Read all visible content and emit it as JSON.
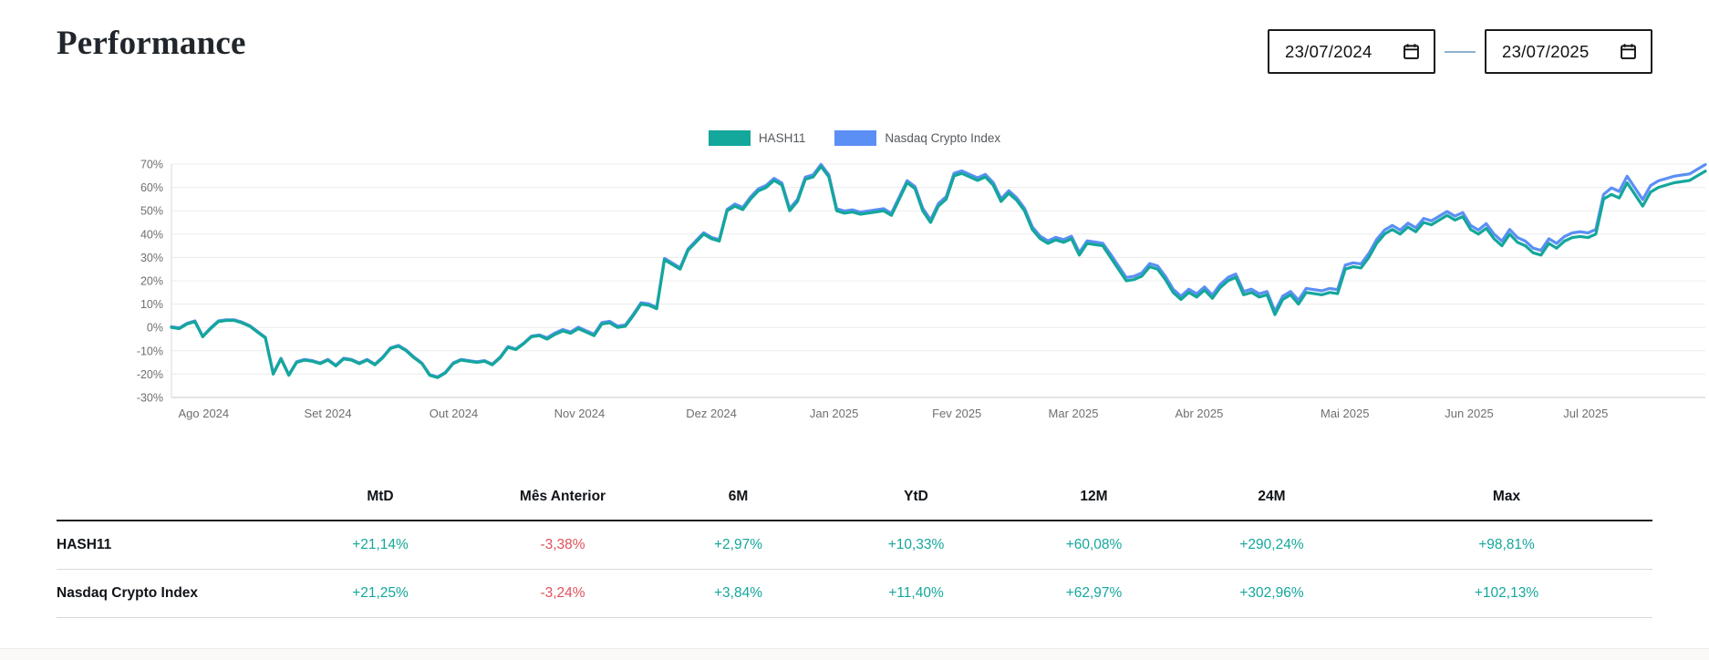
{
  "page": {
    "title": "Performance"
  },
  "date_range": {
    "start": "23/07/2024",
    "end": "23/07/2025"
  },
  "legend": [
    {
      "label": "HASH11",
      "color": "#14A79B"
    },
    {
      "label": "Nasdaq Crypto Index",
      "color": "#5B8FF5"
    }
  ],
  "chart_data": {
    "type": "line",
    "title": "",
    "xlabel": "",
    "ylabel": "",
    "ylim": [
      -30,
      70
    ],
    "grid": true,
    "legend_position": "top-center",
    "y_ticks": [
      70,
      60,
      50,
      40,
      30,
      20,
      10,
      0,
      -10,
      -20,
      -30
    ],
    "y_tick_suffix": "%",
    "x_tick_labels": [
      "Ago 2024",
      "Set 2024",
      "Out 2024",
      "Nov 2024",
      "Dez 2024",
      "Jan 2025",
      "Fev 2025",
      "Mar 2025",
      "Abr 2025",
      "Mai 2025",
      "Jun 2025",
      "Jul 2025"
    ],
    "month_fracs": [
      0.021,
      0.102,
      0.184,
      0.266,
      0.352,
      0.432,
      0.512,
      0.588,
      0.67,
      0.765,
      0.846,
      0.922
    ],
    "series": [
      {
        "name": "HASH11",
        "color": "#14A79B",
        "values": [
          0,
          -0.5,
          1.5,
          2.5,
          -4,
          -0.5,
          2.5,
          3,
          3,
          2,
          0.5,
          -2,
          -4.5,
          -20,
          -13.5,
          -20.5,
          -15,
          -14,
          -14.5,
          -15.5,
          -14,
          -16.5,
          -13.5,
          -14,
          -15.5,
          -14,
          -16,
          -13,
          -9,
          -8,
          -10,
          -13,
          -15.5,
          -20.5,
          -21.5,
          -19.5,
          -15.5,
          -14,
          -14.5,
          -15,
          -14.5,
          -16,
          -13,
          -8.5,
          -9.5,
          -7,
          -4,
          -3.5,
          -5,
          -3,
          -1.5,
          -2.5,
          -0.5,
          -2,
          -3.5,
          1.5,
          2,
          0,
          0.5,
          5,
          10,
          9.5,
          8,
          29,
          27,
          25,
          33,
          36.5,
          40,
          38,
          37,
          50,
          52,
          50.5,
          55,
          58.5,
          60,
          63,
          61,
          50,
          54,
          63.5,
          64.5,
          69,
          64.5,
          50,
          49,
          49.5,
          48.5,
          49,
          49.5,
          50,
          48,
          55,
          62,
          59.5,
          50,
          45,
          52,
          55,
          65,
          66,
          64.5,
          63,
          64.5,
          61,
          54,
          57.5,
          54.5,
          50,
          42,
          38,
          36,
          37.5,
          36.5,
          38,
          31,
          36,
          35.5,
          35,
          30,
          25,
          20,
          20.5,
          22,
          26,
          25,
          20.5,
          15,
          12,
          15,
          13,
          16,
          12.5,
          17,
          20,
          21.5,
          14,
          15,
          13,
          14,
          5.5,
          12,
          14,
          10,
          15,
          14.5,
          14,
          15,
          14.5,
          25,
          26,
          25.5,
          30,
          36,
          40,
          42,
          40,
          43,
          41,
          45,
          44,
          46,
          48,
          46,
          47.5,
          42,
          40,
          42.5,
          38,
          35,
          40,
          36.5,
          35,
          32,
          31,
          36,
          34,
          37,
          38.5,
          39,
          38.5,
          40,
          55,
          57,
          55.5,
          62,
          57,
          52,
          58,
          60,
          61,
          62,
          62.5,
          63,
          65,
          67
        ]
      },
      {
        "name": "Nasdaq Crypto Index",
        "color": "#5B8FF5",
        "values": [
          0.3,
          -0.2,
          1.8,
          2.8,
          -3.7,
          -0.2,
          2.8,
          3.3,
          3.3,
          2.3,
          0.8,
          -1.7,
          -4.2,
          -19.7,
          -13.2,
          -20.2,
          -14.7,
          -13.7,
          -14.2,
          -15.2,
          -13.7,
          -16.2,
          -13.2,
          -13.7,
          -15.2,
          -13.7,
          -15.7,
          -12.7,
          -8.7,
          -7.7,
          -9.7,
          -12.7,
          -15.2,
          -20.2,
          -21.2,
          -19.2,
          -15.2,
          -13.7,
          -14.2,
          -14.7,
          -14.2,
          -15.7,
          -12.7,
          -8.2,
          -9.2,
          -6.7,
          -3.7,
          -3.2,
          -4.4,
          -2.4,
          -0.9,
          -1.9,
          0.1,
          -1.4,
          -2.9,
          2.1,
          2.6,
          0.6,
          1.1,
          5.6,
          10.6,
          10.1,
          8.6,
          29.6,
          27.6,
          25.6,
          33.6,
          37.1,
          40.6,
          38.6,
          37.6,
          50.6,
          52.9,
          51.4,
          55.9,
          59.4,
          60.9,
          63.9,
          61.9,
          50.9,
          54.9,
          64.4,
          65.4,
          69.9,
          65.4,
          50.9,
          49.9,
          50.4,
          49.4,
          49.9,
          50.4,
          50.9,
          48.9,
          55.9,
          62.9,
          60.4,
          51.1,
          46.1,
          53.1,
          56.1,
          66.1,
          67.1,
          65.6,
          64.1,
          65.6,
          62.1,
          55.1,
          58.6,
          55.6,
          51.1,
          43.1,
          39.1,
          37.1,
          38.6,
          37.6,
          39.1,
          32.1,
          37.1,
          36.6,
          36.1,
          31.4,
          26.4,
          21.4,
          21.9,
          23.4,
          27.4,
          26.4,
          21.9,
          16.4,
          13.4,
          16.4,
          14.4,
          17.4,
          13.9,
          18.4,
          21.4,
          22.9,
          15.4,
          16.4,
          14.4,
          15.4,
          6.9,
          13.4,
          15.4,
          11.7,
          16.7,
          16.2,
          15.7,
          16.7,
          16.2,
          26.7,
          27.7,
          27.2,
          31.7,
          37.7,
          41.7,
          43.7,
          41.7,
          44.7,
          42.7,
          46.7,
          45.7,
          47.7,
          49.7,
          47.7,
          49.2,
          43.7,
          41.7,
          44.5,
          40,
          37,
          42,
          38.5,
          37,
          34,
          33,
          38,
          36,
          39,
          40.5,
          41,
          40.5,
          42,
          57,
          59.8,
          58.3,
          64.8,
          59.8,
          54.8,
          60.8,
          62.8,
          63.8,
          64.8,
          65.3,
          65.8,
          67.8,
          69.8
        ]
      }
    ]
  },
  "table": {
    "columns": [
      "",
      "MtD",
      "Mês Anterior",
      "6M",
      "YtD",
      "12M",
      "24M",
      "Max"
    ],
    "rows": [
      {
        "name": "HASH11",
        "values": [
          "+21,14%",
          "-3,38%",
          "+2,97%",
          "+10,33%",
          "+60,08%",
          "+290,24%",
          "+98,81%"
        ]
      },
      {
        "name": "Nasdaq Crypto Index",
        "values": [
          "+21,25%",
          "-3,24%",
          "+3,84%",
          "+11,40%",
          "+62,97%",
          "+302,96%",
          "+102,13%"
        ]
      }
    ]
  },
  "theme": {
    "positive": "#14A79B",
    "negative": "#E0505A",
    "teal": "#14A79B",
    "blue": "#5B8FF5"
  }
}
